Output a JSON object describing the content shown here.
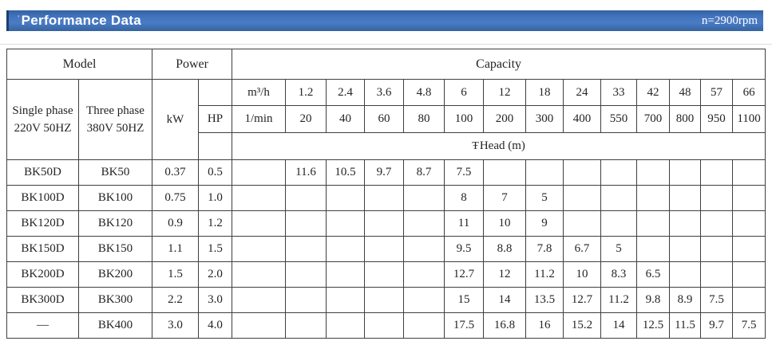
{
  "page": {
    "title_tick": "ˈ",
    "title": "Performance Data",
    "speed_note": "n=2900rpm",
    "bar_color": "#3b6cb5",
    "border_color": "#3f3f3f"
  },
  "table": {
    "headers": {
      "model": "Model",
      "power": "Power",
      "capacity": "Capacity",
      "single_phase_line1": "Single phase",
      "single_phase_line2": "220V 50HZ",
      "three_phase_line1": "Three phase",
      "three_phase_line2": "380V 50HZ",
      "kw": "kW",
      "hp": "HP",
      "flow_m3h": "m³/h",
      "flow_lmin": "1/min",
      "head_prefix": "Ŧ",
      "head": "Head (m)"
    },
    "flow_m3h_values": [
      "1.2",
      "2.4",
      "3.6",
      "4.8",
      "6",
      "12",
      "18",
      "24",
      "33",
      "42",
      "48",
      "57",
      "66"
    ],
    "flow_lmin_values": [
      "20",
      "40",
      "60",
      "80",
      "100",
      "200",
      "300",
      "400",
      "550",
      "700",
      "800",
      "950",
      "1100"
    ],
    "rows": [
      {
        "single": "BK50D",
        "three": "BK50",
        "kw": "0.37",
        "hp": "0.5",
        "heads": [
          "11.6",
          "10.5",
          "9.7",
          "8.7",
          "7.5",
          "",
          "",
          "",
          "",
          "",
          "",
          "",
          ""
        ]
      },
      {
        "single": "BK100D",
        "three": "BK100",
        "kw": "0.75",
        "hp": "1.0",
        "heads": [
          "",
          "",
          "",
          "",
          "8",
          "7",
          "5",
          "",
          "",
          "",
          "",
          "",
          ""
        ]
      },
      {
        "single": "BK120D",
        "three": "BK120",
        "kw": "0.9",
        "hp": "1.2",
        "heads": [
          "",
          "",
          "",
          "",
          "11",
          "10",
          "9",
          "",
          "",
          "",
          "",
          "",
          ""
        ]
      },
      {
        "single": "BK150D",
        "three": "BK150",
        "kw": "1.1",
        "hp": "1.5",
        "heads": [
          "",
          "",
          "",
          "",
          "9.5",
          "8.8",
          "7.8",
          "6.7",
          "5",
          "",
          "",
          "",
          ""
        ]
      },
      {
        "single": "BK200D",
        "three": "BK200",
        "kw": "1.5",
        "hp": "2.0",
        "heads": [
          "",
          "",
          "",
          "",
          "12.7",
          "12",
          "11.2",
          "10",
          "8.3",
          "6.5",
          "",
          "",
          ""
        ]
      },
      {
        "single": "BK300D",
        "three": "BK300",
        "kw": "2.2",
        "hp": "3.0",
        "heads": [
          "",
          "",
          "",
          "",
          "15",
          "14",
          "13.5",
          "12.7",
          "11.2",
          "9.8",
          "8.9",
          "7.5",
          ""
        ]
      },
      {
        "single": "—",
        "three": "BK400",
        "kw": "3.0",
        "hp": "4.0",
        "heads": [
          "",
          "",
          "",
          "",
          "17.5",
          "16.8",
          "16",
          "15.2",
          "14",
          "12.5",
          "11.5",
          "9.7",
          "7.5"
        ]
      }
    ]
  }
}
